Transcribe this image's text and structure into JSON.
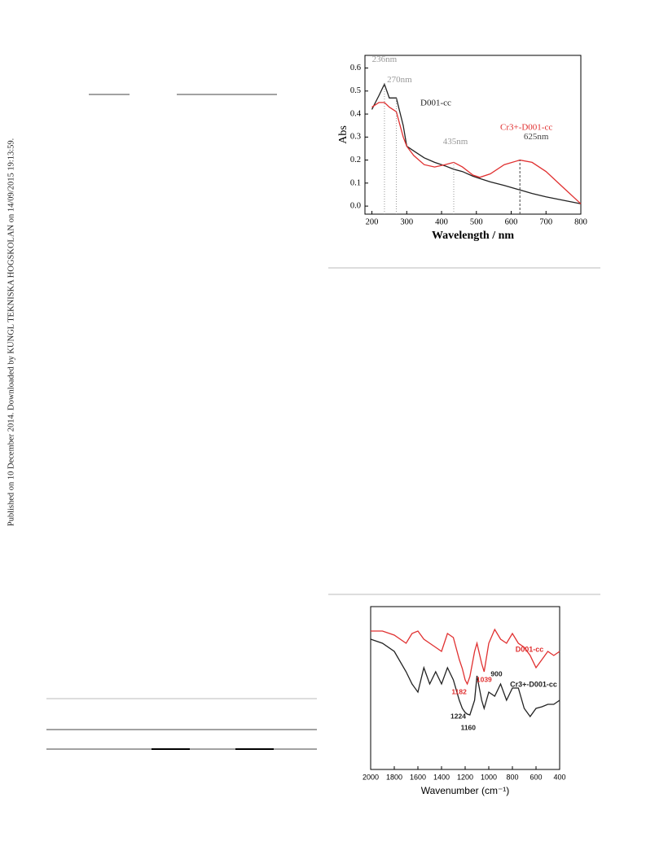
{
  "watermark": "Published on 10 December 2014. Downloaded by KUNGL TEKNISKA HOGSKOLAN on 14/09/2015 19:13:59.",
  "chart_data": [
    {
      "type": "line",
      "y_label": "Abs",
      "x_label": "Wavelength / nm",
      "x": [
        200,
        220,
        236,
        250,
        270,
        290,
        300,
        320,
        350,
        380,
        410,
        435,
        460,
        490,
        510,
        540,
        580,
        625,
        660,
        700,
        750,
        800
      ],
      "xlim": [
        180,
        800
      ],
      "xticks": [
        200,
        300,
        400,
        500,
        600,
        700,
        800
      ],
      "ylim": [
        -0.035,
        0.655
      ],
      "yticks": [
        {
          "value": 0,
          "label": "0.0"
        },
        0.1,
        0.2,
        0.3,
        0.4,
        0.5,
        0.6
      ],
      "series": [
        {
          "name": "D001-cc",
          "color": "#222222",
          "values": [
            0.42,
            0.48,
            0.53,
            0.47,
            0.47,
            0.35,
            0.26,
            0.24,
            0.21,
            0.19,
            0.175,
            0.16,
            0.15,
            0.13,
            0.12,
            0.105,
            0.09,
            0.07,
            0.055,
            0.04,
            0.025,
            0.01
          ]
        },
        {
          "name": "Cr3+-D001-cc",
          "color": "#e03030",
          "values": [
            0.43,
            0.45,
            0.45,
            0.43,
            0.41,
            0.3,
            0.26,
            0.22,
            0.18,
            0.17,
            0.18,
            0.19,
            0.17,
            0.135,
            0.125,
            0.14,
            0.18,
            0.2,
            0.19,
            0.15,
            0.08,
            0.01
          ]
        }
      ],
      "annotations": [
        {
          "text": "236nm",
          "x": 236
        },
        {
          "text": "270nm",
          "x": 270
        },
        {
          "text": "435nm",
          "x": 435
        },
        {
          "text": "625nm",
          "x": 625
        }
      ]
    },
    {
      "type": "line",
      "x_label": "Wavenumber (cm⁻¹)",
      "x": [
        2000,
        1900,
        1800,
        1700,
        1650,
        1600,
        1550,
        1500,
        1450,
        1400,
        1350,
        1300,
        1250,
        1224,
        1200,
        1182,
        1160,
        1120,
        1100,
        1060,
        1039,
        1000,
        950,
        900,
        850,
        800,
        750,
        700,
        650,
        600,
        550,
        500,
        450,
        400
      ],
      "xlim": [
        2000,
        400
      ],
      "xticks": [
        2000,
        1800,
        1600,
        1400,
        1200,
        1000,
        800,
        600,
        400
      ],
      "ylim": [
        0,
        100
      ],
      "series": [
        {
          "name": "D001-cc",
          "color": "#e03030",
          "values": [
            85,
            85,
            82.5,
            77.5,
            83.5,
            85,
            80,
            77.5,
            75,
            72.5,
            83.5,
            81,
            67.5,
            62,
            55,
            52.5,
            57,
            72.5,
            77.5,
            65,
            60,
            77.5,
            86,
            80,
            77.5,
            83.5,
            77.5,
            75,
            70,
            62.5,
            67.5,
            72.5,
            70,
            72.5
          ]
        },
        {
          "name": "Cr3+-D001-cc",
          "color": "#222222",
          "values": [
            80,
            77.5,
            72.5,
            60,
            52.5,
            47.5,
            62.5,
            52.5,
            60,
            52.5,
            62.5,
            55,
            42.5,
            37.5,
            35,
            34,
            33.5,
            42.5,
            57.5,
            42.5,
            37.5,
            47.5,
            45,
            52.5,
            42.5,
            50,
            50,
            37.5,
            32.5,
            37.5,
            38.5,
            40,
            40,
            42.5
          ]
        }
      ],
      "annotations": [
        {
          "text": "1182",
          "x": 1182
        },
        {
          "text": "1039",
          "x": 1039
        },
        {
          "text": "1224",
          "x": 1224
        },
        {
          "text": "1160",
          "x": 1160
        },
        {
          "text": "900",
          "x": 900
        }
      ]
    }
  ]
}
